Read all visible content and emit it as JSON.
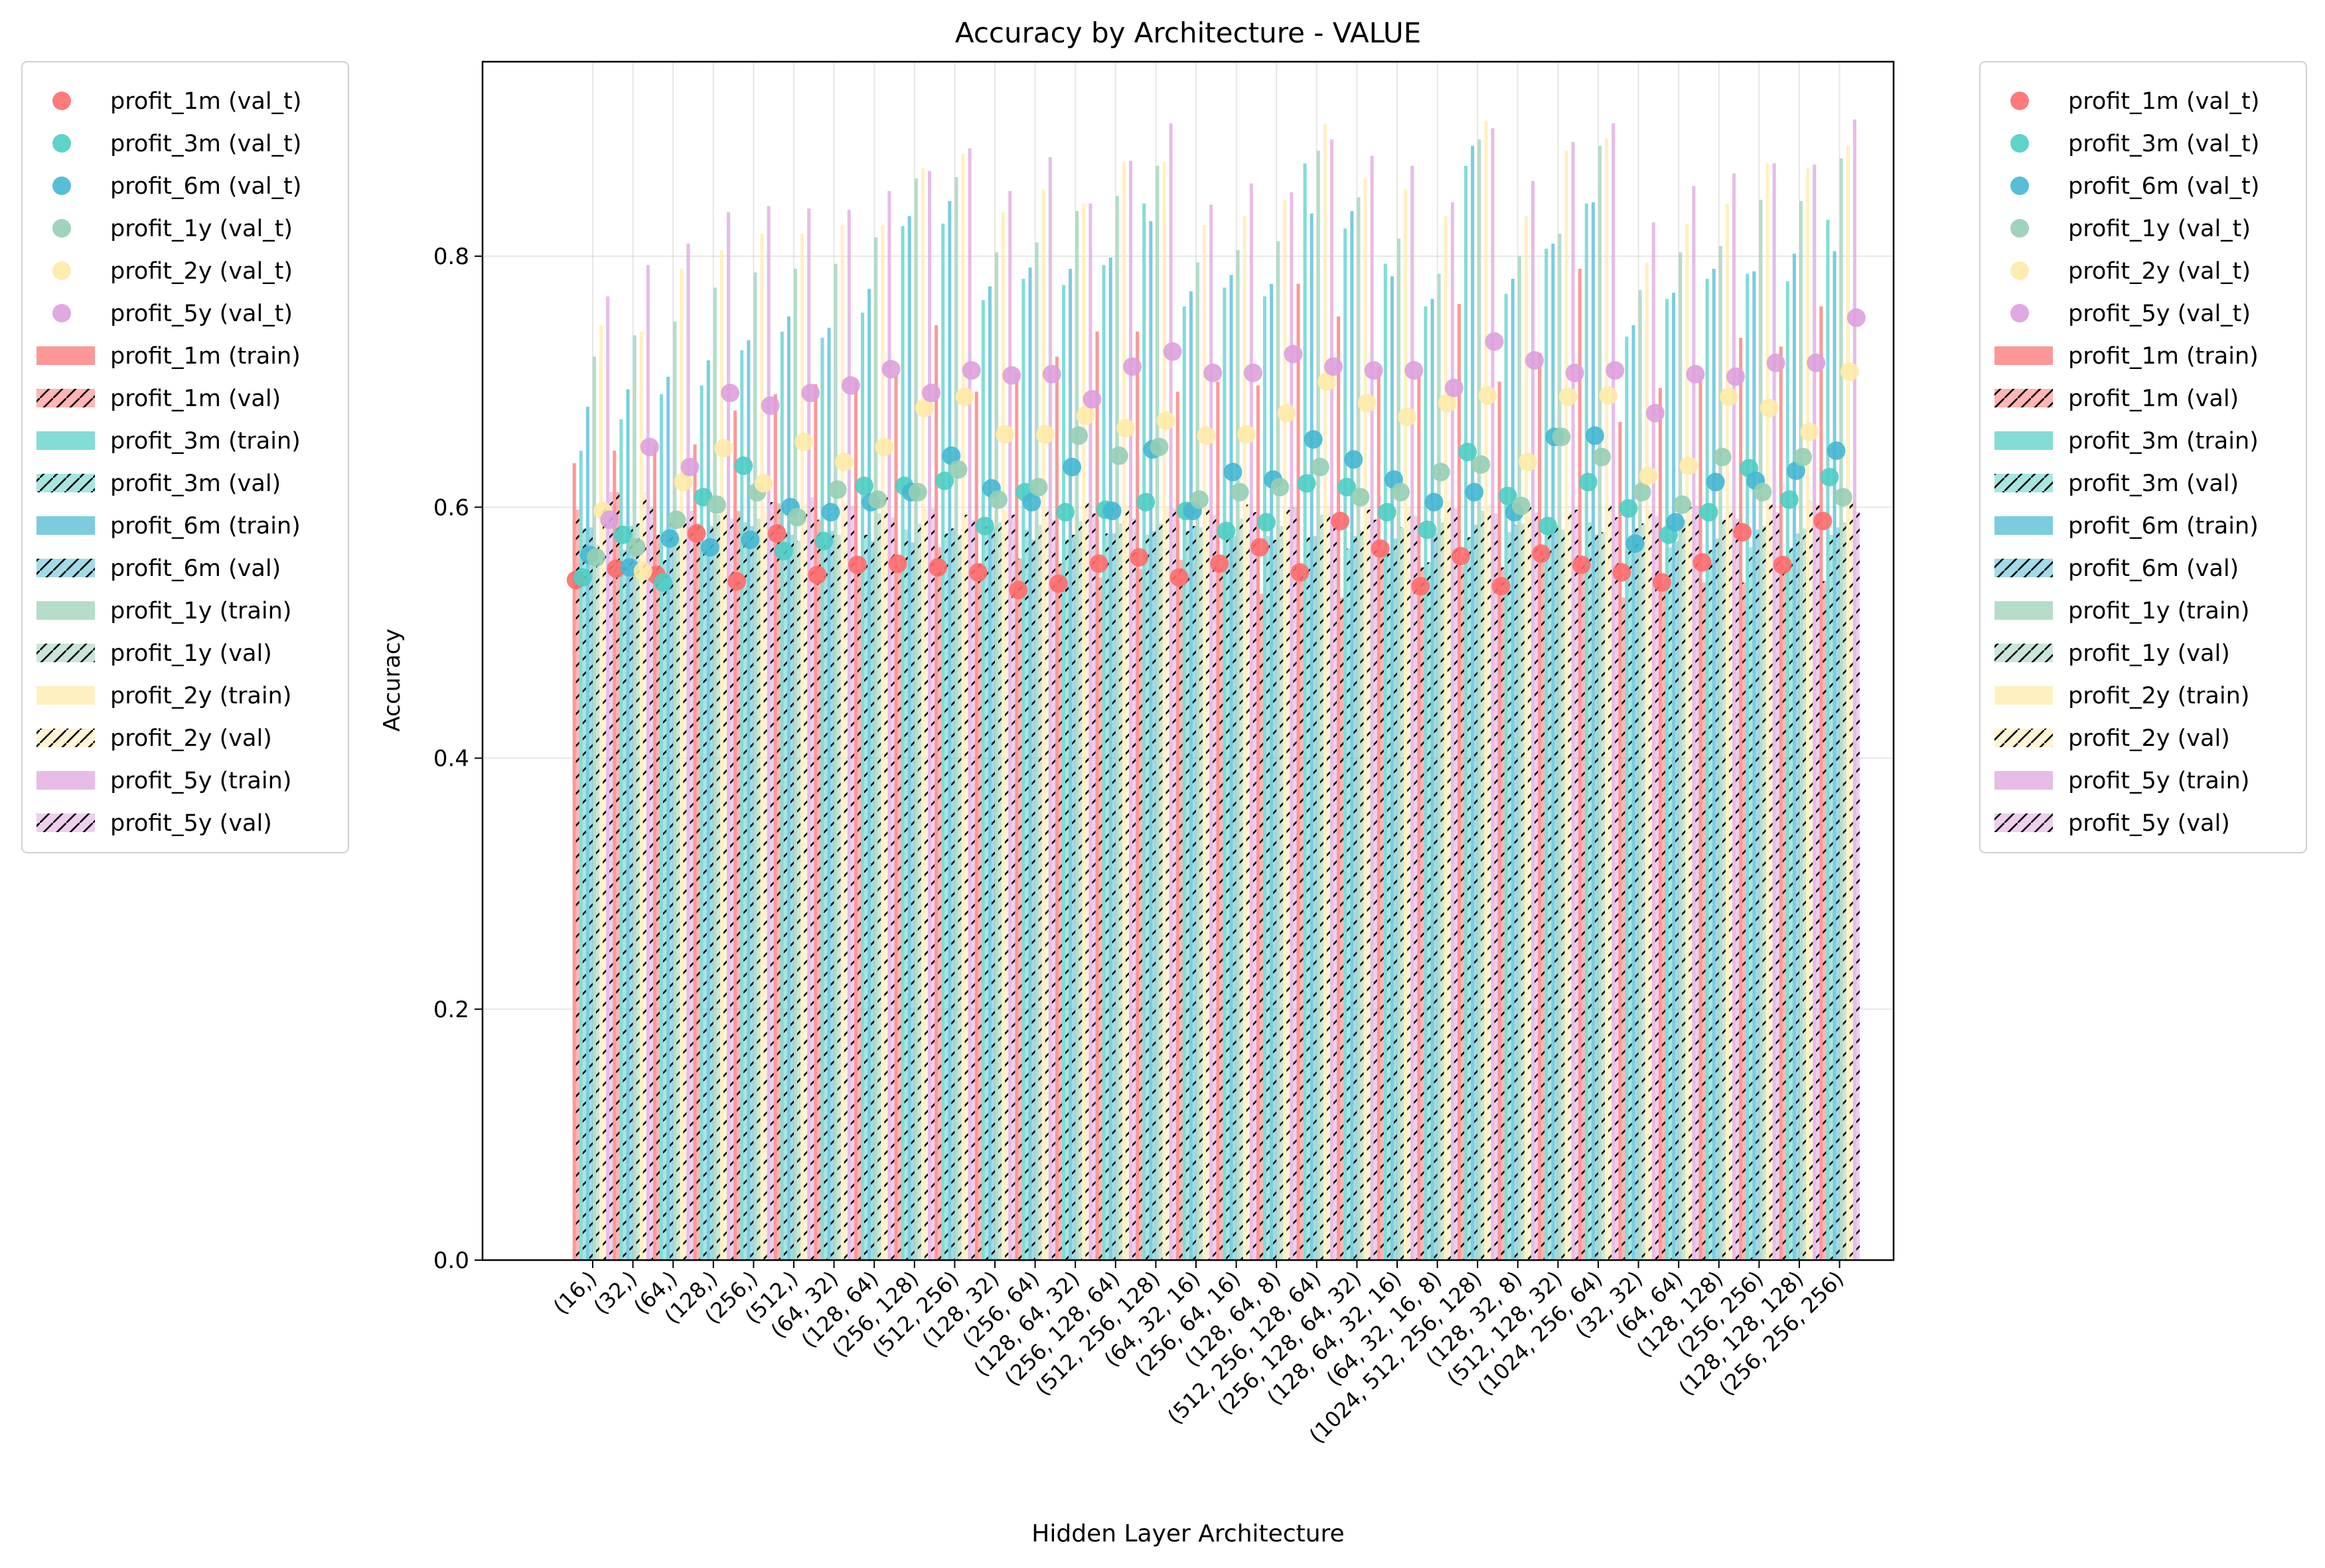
{
  "chart_data": {
    "type": "bar",
    "title": "Accuracy by Architecture - VALUE",
    "xlabel": "Hidden Layer Architecture",
    "ylabel": "Accuracy",
    "ylim": [
      0,
      0.955
    ],
    "yticks": [
      "0.0",
      "0.2",
      "0.4",
      "0.6",
      "0.8"
    ],
    "grid": true,
    "legend_placement": "left and right of plot (duplicated)",
    "categories": [
      "(16,)",
      "(32,)",
      "(64,)",
      "(128,)",
      "(256,)",
      "(512,)",
      "(64, 32)",
      "(128, 64)",
      "(256, 128)",
      "(512, 256)",
      "(128, 32)",
      "(256, 64)",
      "(128, 64, 32)",
      "(256, 128, 64)",
      "(512, 256, 128)",
      "(64, 32, 16)",
      "(256, 64, 16)",
      "(128, 64, 8)",
      "(512, 256, 128, 64)",
      "(256, 128, 64, 32)",
      "(128, 64, 32, 16)",
      "(64, 32, 16, 8)",
      "(1024, 512, 256, 128)",
      "(128, 32, 8)",
      "(512, 128, 32)",
      "(1024, 256, 64)",
      "(32, 32)",
      "(64, 64)",
      "(128, 128)",
      "(256, 256)",
      "(128, 128, 128)",
      "(256, 256, 256)"
    ],
    "series": [
      {
        "name": "profit_1m",
        "color": "#FF6B6B",
        "train": [
          0.635,
          0.645,
          0.648,
          0.65,
          0.677,
          0.69,
          0.698,
          0.702,
          0.705,
          0.745,
          0.692,
          0.707,
          0.72,
          0.74,
          0.74,
          0.692,
          0.7,
          0.697,
          0.778,
          0.752,
          0.712,
          0.705,
          0.762,
          0.7,
          0.723,
          0.79,
          0.668,
          0.695,
          0.705,
          0.735,
          0.728,
          0.76
        ],
        "val": [
          0.598,
          0.612,
          0.578,
          0.587,
          0.597,
          0.603,
          0.59,
          0.548,
          0.552,
          0.568,
          0.555,
          0.559,
          0.555,
          0.544,
          0.551,
          0.558,
          0.551,
          0.531,
          0.548,
          0.528,
          0.567,
          0.552,
          0.553,
          0.552,
          0.567,
          0.556,
          0.528,
          0.539,
          0.54,
          0.54,
          0.55,
          0.541
        ],
        "val_t": [
          0.542,
          0.551,
          0.546,
          0.579,
          0.541,
          0.579,
          0.546,
          0.554,
          0.555,
          0.552,
          0.548,
          0.534,
          0.539,
          0.555,
          0.56,
          0.544,
          0.555,
          0.568,
          0.548,
          0.589,
          0.567,
          0.537,
          0.561,
          0.537,
          0.563,
          0.554,
          0.548,
          0.54,
          0.556,
          0.58,
          0.554,
          0.589
        ]
      },
      {
        "name": "profit_3m",
        "color": "#4ECDC4",
        "train": [
          0.645,
          0.67,
          0.69,
          0.697,
          0.725,
          0.74,
          0.735,
          0.755,
          0.824,
          0.826,
          0.765,
          0.782,
          0.777,
          0.793,
          0.842,
          0.76,
          0.775,
          0.768,
          0.874,
          0.822,
          0.794,
          0.76,
          0.872,
          0.77,
          0.806,
          0.842,
          0.736,
          0.766,
          0.782,
          0.786,
          0.78,
          0.829
        ],
        "val": [
          0.583,
          0.566,
          0.558,
          0.57,
          0.588,
          0.58,
          0.57,
          0.578,
          0.582,
          0.579,
          0.585,
          0.582,
          0.574,
          0.579,
          0.578,
          0.581,
          0.581,
          0.577,
          0.576,
          0.567,
          0.563,
          0.556,
          0.576,
          0.58,
          0.582,
          0.588,
          0.569,
          0.568,
          0.566,
          0.568,
          0.568,
          0.578
        ],
        "val_t": [
          0.544,
          0.578,
          0.54,
          0.608,
          0.633,
          0.565,
          0.573,
          0.617,
          0.617,
          0.621,
          0.585,
          0.612,
          0.596,
          0.598,
          0.604,
          0.597,
          0.581,
          0.588,
          0.619,
          0.616,
          0.596,
          0.582,
          0.644,
          0.609,
          0.585,
          0.62,
          0.599,
          0.578,
          0.596,
          0.631,
          0.606,
          0.624
        ]
      },
      {
        "name": "profit_6m",
        "color": "#45B7D1",
        "train": [
          0.68,
          0.694,
          0.704,
          0.717,
          0.733,
          0.752,
          0.743,
          0.774,
          0.832,
          0.844,
          0.776,
          0.791,
          0.79,
          0.799,
          0.828,
          0.772,
          0.785,
          0.778,
          0.834,
          0.836,
          0.784,
          0.766,
          0.888,
          0.782,
          0.81,
          0.843,
          0.745,
          0.771,
          0.79,
          0.788,
          0.802,
          0.804
        ],
        "val": [
          0.584,
          0.585,
          0.587,
          0.585,
          0.585,
          0.578,
          0.581,
          0.573,
          0.572,
          0.583,
          0.584,
          0.574,
          0.578,
          0.579,
          0.581,
          0.585,
          0.577,
          0.574,
          0.577,
          0.577,
          0.575,
          0.579,
          0.586,
          0.586,
          0.585,
          0.578,
          0.583,
          0.573,
          0.575,
          0.582,
          0.579,
          0.584
        ],
        "val_t": [
          0.562,
          0.552,
          0.575,
          0.568,
          0.574,
          0.6,
          0.596,
          0.604,
          0.612,
          0.641,
          0.615,
          0.604,
          0.632,
          0.597,
          0.646,
          0.597,
          0.628,
          0.622,
          0.654,
          0.638,
          0.622,
          0.604,
          0.612,
          0.596,
          0.656,
          0.657,
          0.571,
          0.588,
          0.62,
          0.621,
          0.629,
          0.645
        ]
      },
      {
        "name": "profit_1y",
        "color": "#96CEB4",
        "train": [
          0.72,
          0.737,
          0.748,
          0.775,
          0.787,
          0.79,
          0.794,
          0.815,
          0.862,
          0.863,
          0.803,
          0.811,
          0.836,
          0.848,
          0.872,
          0.795,
          0.805,
          0.812,
          0.884,
          0.847,
          0.814,
          0.786,
          0.893,
          0.8,
          0.818,
          0.888,
          0.773,
          0.803,
          0.808,
          0.845,
          0.844,
          0.878
        ],
        "val": [
          0.57,
          0.587,
          0.576,
          0.594,
          0.591,
          0.573,
          0.578,
          0.595,
          0.587,
          0.578,
          0.588,
          0.586,
          0.589,
          0.587,
          0.587,
          0.584,
          0.591,
          0.585,
          0.594,
          0.581,
          0.584,
          0.588,
          0.597,
          0.587,
          0.582,
          0.58,
          0.587,
          0.59,
          0.59,
          0.585,
          0.583,
          0.588
        ],
        "val_t": [
          0.56,
          0.568,
          0.59,
          0.602,
          0.612,
          0.592,
          0.614,
          0.606,
          0.612,
          0.63,
          0.606,
          0.616,
          0.657,
          0.641,
          0.648,
          0.606,
          0.612,
          0.616,
          0.632,
          0.608,
          0.612,
          0.628,
          0.634,
          0.601,
          0.656,
          0.64,
          0.612,
          0.602,
          0.64,
          0.612,
          0.64,
          0.608
        ]
      },
      {
        "name": "profit_2y",
        "color": "#FFEAA7",
        "train": [
          0.745,
          0.74,
          0.79,
          0.805,
          0.818,
          0.818,
          0.825,
          0.825,
          0.87,
          0.882,
          0.835,
          0.853,
          0.842,
          0.875,
          0.875,
          0.825,
          0.832,
          0.845,
          0.905,
          0.862,
          0.853,
          0.832,
          0.908,
          0.832,
          0.884,
          0.894,
          0.795,
          0.826,
          0.842,
          0.874,
          0.87,
          0.888
        ],
        "val": [
          0.602,
          0.612,
          0.592,
          0.598,
          0.596,
          0.603,
          0.604,
          0.61,
          0.598,
          0.594,
          0.597,
          0.599,
          0.604,
          0.601,
          0.599,
          0.6,
          0.602,
          0.598,
          0.601,
          0.598,
          0.6,
          0.605,
          0.602,
          0.6,
          0.597,
          0.602,
          0.598,
          0.6,
          0.602,
          0.602,
          0.605,
          0.605
        ],
        "val_t": [
          0.597,
          0.549,
          0.62,
          0.647,
          0.619,
          0.652,
          0.636,
          0.648,
          0.679,
          0.688,
          0.658,
          0.658,
          0.673,
          0.663,
          0.669,
          0.657,
          0.658,
          0.675,
          0.7,
          0.683,
          0.672,
          0.683,
          0.689,
          0.636,
          0.688,
          0.689,
          0.625,
          0.633,
          0.688,
          0.679,
          0.66,
          0.708
        ]
      },
      {
        "name": "profit_5y",
        "color": "#DDA0DD",
        "train": [
          0.768,
          0.793,
          0.81,
          0.835,
          0.84,
          0.838,
          0.837,
          0.852,
          0.868,
          0.886,
          0.852,
          0.879,
          0.842,
          0.876,
          0.906,
          0.841,
          0.858,
          0.851,
          0.893,
          0.88,
          0.872,
          0.843,
          0.902,
          0.86,
          0.891,
          0.906,
          0.827,
          0.856,
          0.866,
          0.874,
          0.873,
          0.909
        ],
        "val": [
          0.612,
          0.6,
          0.597,
          0.591,
          0.604,
          0.608,
          0.601,
          0.592,
          0.599,
          0.59,
          0.594,
          0.59,
          0.595,
          0.591,
          0.599,
          0.594,
          0.596,
          0.6,
          0.594,
          0.59,
          0.593,
          0.599,
          0.595,
          0.596,
          0.598,
          0.592,
          0.593,
          0.601,
          0.591,
          0.596,
          0.602,
          0.596
        ],
        "val_t": [
          0.59,
          0.648,
          0.632,
          0.691,
          0.681,
          0.691,
          0.697,
          0.71,
          0.691,
          0.709,
          0.705,
          0.706,
          0.686,
          0.712,
          0.724,
          0.707,
          0.707,
          0.722,
          0.712,
          0.709,
          0.709,
          0.695,
          0.732,
          0.717,
          0.707,
          0.709,
          0.675,
          0.706,
          0.704,
          0.715,
          0.715,
          0.751
        ]
      }
    ],
    "legend_labels": [
      "profit_1m (val_t)",
      "profit_3m (val_t)",
      "profit_6m (val_t)",
      "profit_1y (val_t)",
      "profit_2y (val_t)",
      "profit_5y (val_t)",
      "profit_1m (train)",
      "profit_1m (val)",
      "profit_3m (train)",
      "profit_3m (val)",
      "profit_6m (train)",
      "profit_6m (val)",
      "profit_1y (train)",
      "profit_1y (val)",
      "profit_2y (train)",
      "profit_2y (val)",
      "profit_5y (train)",
      "profit_5y (val)"
    ]
  }
}
